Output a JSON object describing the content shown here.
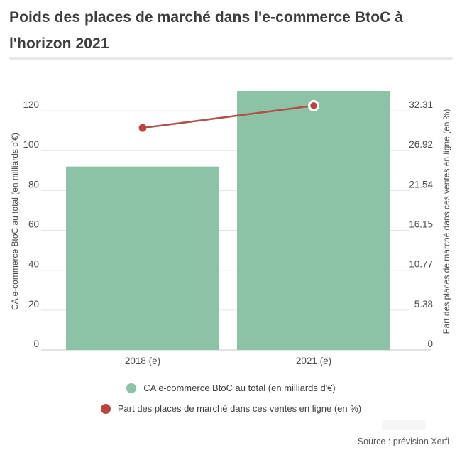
{
  "header": {
    "title": "Poids des places de marché dans l'e-commerce BtoC à l'horizon 2021"
  },
  "chart_data": {
    "type": "bar",
    "title": "Poids des places de marché dans l'e-commerce BtoC à l'horizon 2021",
    "categories": [
      "2018 (e)",
      "2021 (e)"
    ],
    "series": [
      {
        "name": "CA e-commerce BtoC au total (en milliards d'€)",
        "type": "bar",
        "axis": "left",
        "color": "#8cc2a6",
        "values": [
          92,
          130
        ]
      },
      {
        "name": "Part des places de marché dans ces ventes en ligne (en %)",
        "type": "line",
        "axis": "right",
        "color": "#bb4440",
        "line_color": "#b2514b",
        "values": [
          30,
          33
        ]
      }
    ],
    "left_axis": {
      "label": "CA e-commerce BtoC au total (en milliards d'€)",
      "ticks": [
        0,
        20,
        40,
        60,
        80,
        100,
        120
      ],
      "max": 130
    },
    "right_axis": {
      "label": "Part des places de marché dans ces ventes en ligne (en %)",
      "ticks": [
        "0",
        "5.38",
        "10.77",
        "16.15",
        "21.54",
        "26.92",
        "32.31"
      ],
      "max": 35
    },
    "grid": true,
    "legend_position": "bottom"
  },
  "legend": {
    "items": [
      {
        "label": "CA e-commerce BtoC au total (en milliards d'€)",
        "color": "#8cc2a6"
      },
      {
        "label": "Part des places de marché dans ces ventes en ligne (en %)",
        "color": "#bb4440"
      }
    ]
  },
  "source": "Source : prévision Xerfi",
  "colors": {
    "title_text": "#3d3d3d",
    "axis_text": "#4a4a4a",
    "gridline": "#e3e3e3",
    "baseline": "#c9c9c9",
    "bar_green": "#8cc2a6",
    "line_red": "#b2514b",
    "point_red": "#bb4440"
  }
}
